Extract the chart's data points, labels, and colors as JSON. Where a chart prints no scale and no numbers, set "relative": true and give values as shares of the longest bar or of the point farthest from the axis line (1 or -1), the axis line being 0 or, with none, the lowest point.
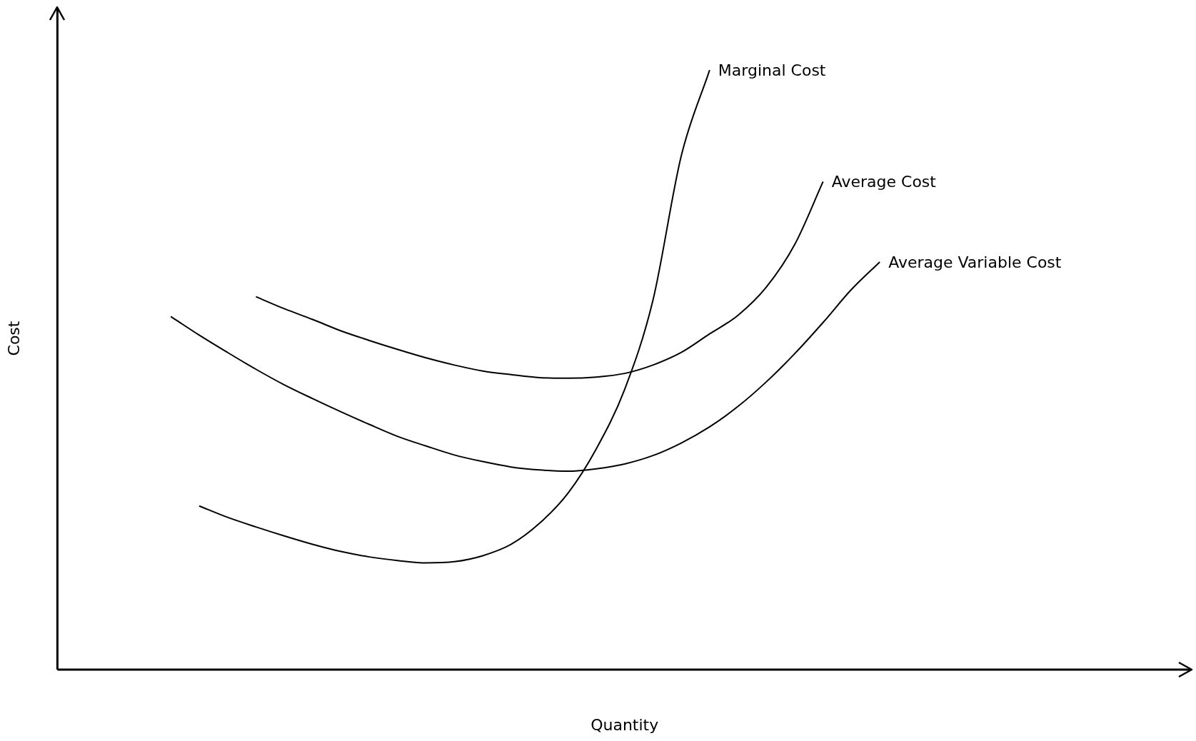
{
  "chart_data": {
    "type": "line",
    "relative": true,
    "xlabel": "Quantity",
    "ylabel": "Cost",
    "grid": false,
    "legend": false,
    "marker": "none",
    "line_style": "solid",
    "categories": [
      null,
      null,
      null,
      null,
      null,
      null,
      null,
      null,
      null,
      null,
      null,
      null,
      null,
      null,
      null,
      null,
      null,
      null,
      null,
      null,
      null,
      null,
      null,
      null,
      null,
      null,
      null,
      null,
      null,
      null,
      null,
      null,
      null,
      null,
      null,
      null,
      null,
      null,
      null,
      null,
      null
    ],
    "series": [
      {
        "name": "Marginal Cost",
        "color": "#000000",
        "values": [
          null,
          null,
          null,
          null,
          null,
          0.273,
          0.254,
          0.238,
          0.223,
          0.209,
          0.197,
          0.188,
          0.182,
          0.178,
          0.18,
          0.19,
          0.209,
          0.244,
          0.294,
          0.368,
          0.467,
          0.616,
          0.857,
          1,
          null,
          null,
          null,
          null,
          null,
          null,
          null,
          null,
          null,
          null,
          null,
          null,
          null,
          null,
          null,
          null,
          null
        ]
      },
      {
        "name": "Average Cost",
        "color": "#000000",
        "values": [
          null,
          null,
          null,
          null,
          null,
          null,
          null,
          0.622,
          0.602,
          0.584,
          0.565,
          0.549,
          0.534,
          0.52,
          0.508,
          0.498,
          0.492,
          0.487,
          0.486,
          0.488,
          0.494,
          0.508,
          0.529,
          0.56,
          0.591,
          0.638,
          0.709,
          0.814,
          null,
          null,
          null,
          null,
          null,
          null,
          null,
          null,
          null,
          null,
          null,
          null,
          null
        ]
      },
      {
        "name": "Average Variable Cost",
        "color": "#000000",
        "values": [
          null,
          null,
          null,
          null,
          0.589,
          0.558,
          0.529,
          0.501,
          0.475,
          0.452,
          0.43,
          0.409,
          0.389,
          0.373,
          0.358,
          0.347,
          0.338,
          0.333,
          0.331,
          0.335,
          0.343,
          0.357,
          0.378,
          0.405,
          0.439,
          0.48,
          0.527,
          0.579,
          0.634,
          0.68,
          null,
          null,
          null,
          null,
          null,
          null,
          null,
          null,
          null,
          null,
          null
        ]
      }
    ]
  }
}
